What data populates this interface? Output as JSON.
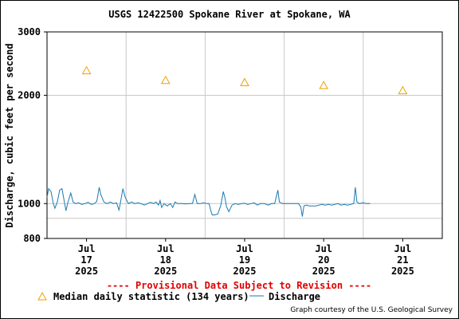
{
  "chart_data": {
    "type": "line",
    "title": "USGS 12422500 Spokane River at Spokane, WA",
    "ylabel": "Discharge, cubic feet per second",
    "y_scale": "log",
    "ylim": [
      800,
      3000
    ],
    "y_ticks": [
      800,
      1000,
      2000,
      3000
    ],
    "x_ticks": [
      {
        "label": [
          "Jul",
          "17",
          "2025"
        ],
        "day": 0
      },
      {
        "label": [
          "Jul",
          "18",
          "2025"
        ],
        "day": 1
      },
      {
        "label": [
          "Jul",
          "19",
          "2025"
        ],
        "day": 2
      },
      {
        "label": [
          "Jul",
          "20",
          "2025"
        ],
        "day": 3
      },
      {
        "label": [
          "Jul",
          "21",
          "2025"
        ],
        "day": 4
      }
    ],
    "xlim": [
      -0.5,
      4.5
    ],
    "grid": true,
    "extra_gridline_y": 910,
    "series": [
      {
        "name": "Median daily statistic (134 years)",
        "style": "triangle-marker",
        "color": "#f0a000",
        "points": [
          {
            "day": 0,
            "value": 2340
          },
          {
            "day": 1,
            "value": 2200
          },
          {
            "day": 2,
            "value": 2170
          },
          {
            "day": 3,
            "value": 2130
          },
          {
            "day": 4,
            "value": 2060
          }
        ]
      },
      {
        "name": "Discharge",
        "style": "line",
        "color": "#1a7ab0",
        "points": [
          {
            "day": -0.5,
            "value": 1040
          },
          {
            "day": -0.48,
            "value": 1100
          },
          {
            "day": -0.45,
            "value": 1080
          },
          {
            "day": -0.42,
            "value": 1000
          },
          {
            "day": -0.4,
            "value": 970
          },
          {
            "day": -0.37,
            "value": 1010
          },
          {
            "day": -0.34,
            "value": 1090
          },
          {
            "day": -0.31,
            "value": 1100
          },
          {
            "day": -0.28,
            "value": 1010
          },
          {
            "day": -0.26,
            "value": 955
          },
          {
            "day": -0.24,
            "value": 1000
          },
          {
            "day": -0.2,
            "value": 1070
          },
          {
            "day": -0.17,
            "value": 1010
          },
          {
            "day": -0.14,
            "value": 1000
          },
          {
            "day": -0.1,
            "value": 1005
          },
          {
            "day": -0.06,
            "value": 995
          },
          {
            "day": -0.02,
            "value": 1000
          },
          {
            "day": 0.02,
            "value": 1008
          },
          {
            "day": 0.06,
            "value": 995
          },
          {
            "day": 0.1,
            "value": 1000
          },
          {
            "day": 0.13,
            "value": 1015
          },
          {
            "day": 0.16,
            "value": 1110
          },
          {
            "day": 0.18,
            "value": 1060
          },
          {
            "day": 0.22,
            "value": 1010
          },
          {
            "day": 0.26,
            "value": 1000
          },
          {
            "day": 0.3,
            "value": 1010
          },
          {
            "day": 0.34,
            "value": 1000
          },
          {
            "day": 0.38,
            "value": 1005
          },
          {
            "day": 0.41,
            "value": 960
          },
          {
            "day": 0.43,
            "value": 1010
          },
          {
            "day": 0.46,
            "value": 1100
          },
          {
            "day": 0.49,
            "value": 1040
          },
          {
            "day": 0.53,
            "value": 1000
          },
          {
            "day": 0.57,
            "value": 1010
          },
          {
            "day": 0.61,
            "value": 1000
          },
          {
            "day": 0.65,
            "value": 1005
          },
          {
            "day": 0.69,
            "value": 1000
          },
          {
            "day": 0.73,
            "value": 990
          },
          {
            "day": 0.77,
            "value": 1000
          },
          {
            "day": 0.81,
            "value": 1008
          },
          {
            "day": 0.85,
            "value": 1000
          },
          {
            "day": 0.88,
            "value": 1010
          },
          {
            "day": 0.91,
            "value": 990
          },
          {
            "day": 0.93,
            "value": 1020
          },
          {
            "day": 0.95,
            "value": 975
          },
          {
            "day": 0.98,
            "value": 1000
          },
          {
            "day": 1.02,
            "value": 985
          },
          {
            "day": 1.06,
            "value": 1000
          },
          {
            "day": 1.09,
            "value": 975
          },
          {
            "day": 1.12,
            "value": 1010
          },
          {
            "day": 1.15,
            "value": 1000
          },
          {
            "day": 1.2,
            "value": 1000
          },
          {
            "day": 1.25,
            "value": 998
          },
          {
            "day": 1.3,
            "value": 1000
          },
          {
            "day": 1.34,
            "value": 1000
          },
          {
            "day": 1.37,
            "value": 1060
          },
          {
            "day": 1.4,
            "value": 1000
          },
          {
            "day": 1.44,
            "value": 1000
          },
          {
            "day": 1.48,
            "value": 1005
          },
          {
            "day": 1.52,
            "value": 1000
          },
          {
            "day": 1.55,
            "value": 1000
          },
          {
            "day": 1.57,
            "value": 960
          },
          {
            "day": 1.59,
            "value": 930
          },
          {
            "day": 1.62,
            "value": 930
          },
          {
            "day": 1.66,
            "value": 935
          },
          {
            "day": 1.7,
            "value": 990
          },
          {
            "day": 1.73,
            "value": 1080
          },
          {
            "day": 1.75,
            "value": 1040
          },
          {
            "day": 1.77,
            "value": 980
          },
          {
            "day": 1.8,
            "value": 950
          },
          {
            "day": 1.84,
            "value": 990
          },
          {
            "day": 1.88,
            "value": 1000
          },
          {
            "day": 1.92,
            "value": 995
          },
          {
            "day": 1.96,
            "value": 1000
          },
          {
            "day": 2.0,
            "value": 1002
          },
          {
            "day": 2.04,
            "value": 995
          },
          {
            "day": 2.08,
            "value": 1000
          },
          {
            "day": 2.12,
            "value": 1005
          },
          {
            "day": 2.16,
            "value": 990
          },
          {
            "day": 2.2,
            "value": 1000
          },
          {
            "day": 2.25,
            "value": 1000
          },
          {
            "day": 2.3,
            "value": 990
          },
          {
            "day": 2.34,
            "value": 1000
          },
          {
            "day": 2.38,
            "value": 1000
          },
          {
            "day": 2.42,
            "value": 1090
          },
          {
            "day": 2.44,
            "value": 1010
          },
          {
            "day": 2.48,
            "value": 1000
          },
          {
            "day": 2.52,
            "value": 1000
          },
          {
            "day": 2.56,
            "value": 1000
          },
          {
            "day": 2.6,
            "value": 1000
          },
          {
            "day": 2.64,
            "value": 1000
          },
          {
            "day": 2.68,
            "value": 1000
          },
          {
            "day": 2.71,
            "value": 980
          },
          {
            "day": 2.73,
            "value": 920
          },
          {
            "day": 2.75,
            "value": 985
          },
          {
            "day": 2.78,
            "value": 990
          },
          {
            "day": 2.82,
            "value": 985
          },
          {
            "day": 2.86,
            "value": 985
          },
          {
            "day": 2.9,
            "value": 985
          },
          {
            "day": 2.94,
            "value": 990
          },
          {
            "day": 2.98,
            "value": 995
          },
          {
            "day": 3.02,
            "value": 990
          },
          {
            "day": 3.06,
            "value": 995
          },
          {
            "day": 3.1,
            "value": 990
          },
          {
            "day": 3.14,
            "value": 995
          },
          {
            "day": 3.18,
            "value": 1000
          },
          {
            "day": 3.22,
            "value": 990
          },
          {
            "day": 3.26,
            "value": 995
          },
          {
            "day": 3.3,
            "value": 990
          },
          {
            "day": 3.34,
            "value": 995
          },
          {
            "day": 3.38,
            "value": 1000
          },
          {
            "day": 3.4,
            "value": 1110
          },
          {
            "day": 3.42,
            "value": 1010
          },
          {
            "day": 3.45,
            "value": 1000
          },
          {
            "day": 3.5,
            "value": 1005
          },
          {
            "day": 3.54,
            "value": 1000
          },
          {
            "day": 3.59,
            "value": 1000
          }
        ]
      }
    ]
  },
  "provisional_note": "---- Provisional Data Subject to Revision ----",
  "legend": {
    "median_label": "Median daily statistic (134 years)",
    "discharge_label": "Discharge"
  },
  "credit": "Graph courtesy of the U.S. Geological Survey"
}
